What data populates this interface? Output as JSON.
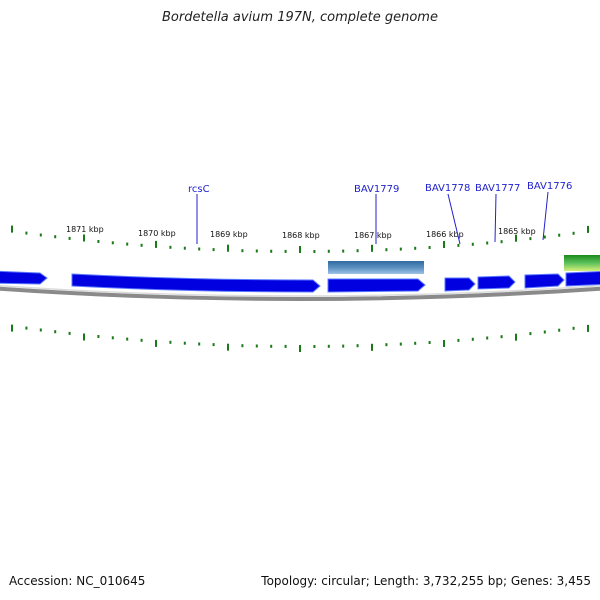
{
  "title": "Bordetella avium 197N, complete genome",
  "footer": {
    "accession_label": "Accession:",
    "accession": "NC_010645",
    "topology_label": "Topology:",
    "topology": "circular",
    "length_label": "Length:",
    "length": "3,732,255 bp",
    "genes_label": "Genes:",
    "genes": "3,455"
  },
  "kbp_labels": [
    "1871 kbp",
    "1870 kbp",
    "1869 kbp",
    "1868 kbp",
    "1867 kbp",
    "1866 kbp",
    "1865 kbp"
  ],
  "gene_labels": [
    "rcsC",
    "BAV1779",
    "BAV1778",
    "BAV1777",
    "BAV1776"
  ],
  "colors": {
    "gene": "#0000e0",
    "gene_edge": "#4b6bff",
    "tick": "#1a7a1a",
    "label": "#2222cc",
    "backbone": "#888888",
    "feature": "#4a7fb0"
  }
}
